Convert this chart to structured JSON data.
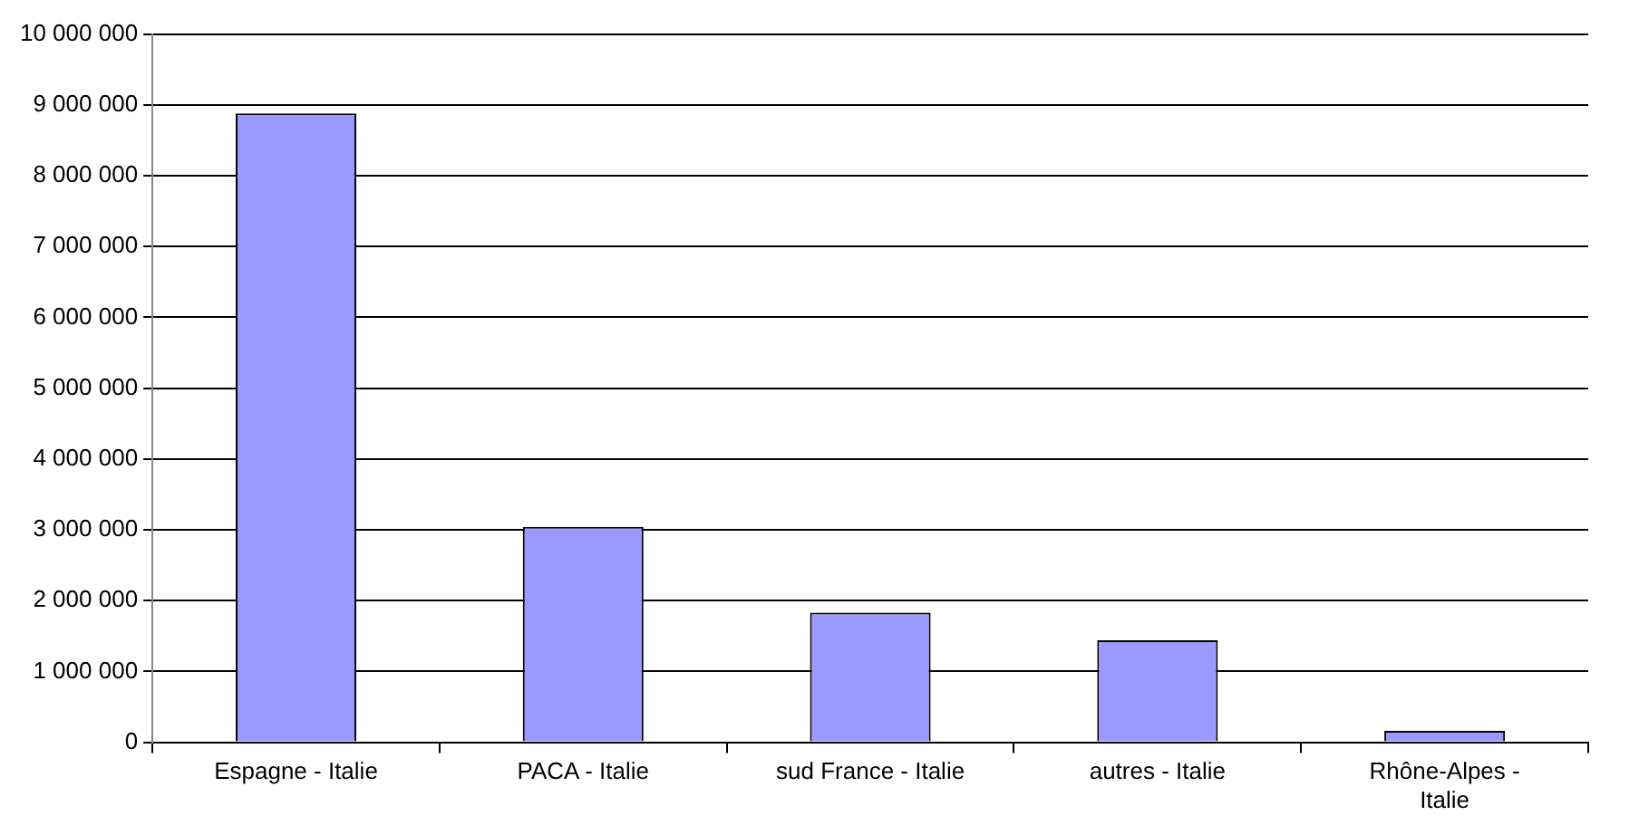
{
  "chart_data": {
    "type": "bar",
    "categories": [
      "Espagne - Italie",
      "PACA - Italie",
      "sud France - Italie",
      "autres - Italie",
      "Rhône-Alpes - Italie"
    ],
    "values": [
      8880000,
      3040000,
      1830000,
      1440000,
      160000
    ],
    "color": "#9999ff",
    "ylim": [
      0,
      10000000
    ],
    "yticks": [
      0,
      {
        "value": 1000000,
        "label": "1 000 000"
      },
      {
        "value": 2000000,
        "label": "2 000 000"
      },
      {
        "value": 3000000,
        "label": "3 000 000"
      },
      {
        "value": 4000000,
        "label": "4 000 000"
      },
      {
        "value": 5000000,
        "label": "5 000 000"
      },
      {
        "value": 6000000,
        "label": "6 000 000"
      },
      {
        "value": 7000000,
        "label": "7 000 000"
      },
      {
        "value": 8000000,
        "label": "8 000 000"
      },
      {
        "value": 9000000,
        "label": "9 000 000"
      },
      {
        "value": 10000000,
        "label": "10 000 000"
      }
    ],
    "grid": "y",
    "legend": false
  }
}
